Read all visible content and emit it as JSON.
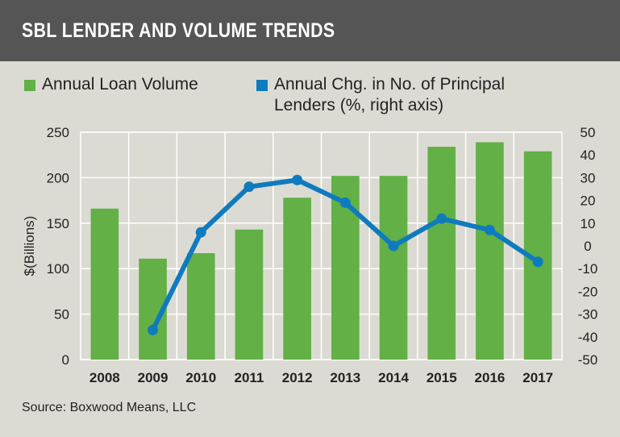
{
  "title": "SBL LENDER AND VOLUME TRENDS",
  "source": "Source: Boxwood Means, LLC",
  "colors": {
    "bar": "#62b046",
    "line": "#0f7bbf",
    "titlebar": "#555555",
    "grid": "#ffffff"
  },
  "chart_data": {
    "type": "bar+line",
    "title": "SBL LENDER AND VOLUME TRENDS",
    "categories": [
      "2008",
      "2009",
      "2010",
      "2011",
      "2012",
      "2013",
      "2014",
      "2015",
      "2016",
      "2017"
    ],
    "series": [
      {
        "name": "Annual Loan Volume",
        "type": "bar",
        "axis": "left",
        "values": [
          166,
          111,
          117,
          143,
          178,
          202,
          202,
          234,
          239,
          229
        ]
      },
      {
        "name": "Annual Chg. in No. of Principal Lenders (%, right axis)",
        "legend_lines": [
          "Annual Chg. in No. of Principal",
          "Lenders (%, right axis)"
        ],
        "type": "line",
        "axis": "right",
        "values": [
          null,
          -37,
          6,
          26,
          29,
          19,
          0,
          12,
          7,
          -7
        ]
      }
    ],
    "ylabel": "$(Billions)",
    "ylim": [
      0,
      250
    ],
    "yticks": [
      "0",
      "50",
      "100",
      "150",
      "200",
      "250"
    ],
    "y2lim": [
      -50,
      50
    ],
    "y2ticks": [
      "-50",
      "-40",
      "-30",
      "-20",
      "-10",
      "0",
      "10",
      "20",
      "30",
      "40",
      "50"
    ],
    "grid": true,
    "legend_placement": "top"
  }
}
